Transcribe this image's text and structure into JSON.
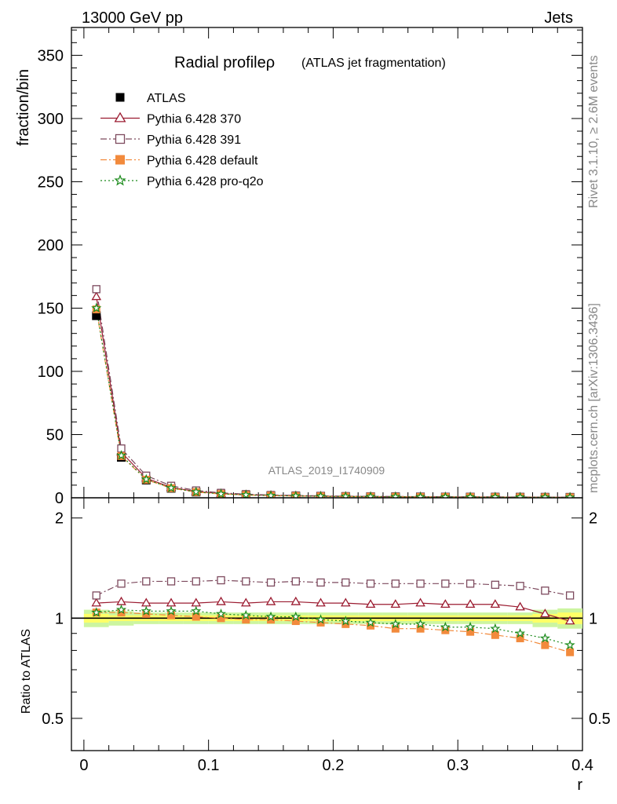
{
  "header": {
    "left": "13000 GeV pp",
    "right": "Jets"
  },
  "side": {
    "rivet": "Rivet 3.1.10, ≥ 2.6M events",
    "mcplots": "mcplots.cern.ch [arXiv:1306.3436]"
  },
  "chart_data": [
    {
      "type": "line",
      "title": "Radial profileρ",
      "subtitle": "(ATLAS jet fragmentation)",
      "ylabel": "fraction/bin",
      "analysis_label": "ATLAS_2019_I1740909",
      "ylim": [
        0,
        372
      ],
      "yticks": [
        0,
        50,
        100,
        150,
        200,
        250,
        300,
        350
      ],
      "legend_position": "top-left",
      "x": [
        0.01,
        0.03,
        0.05,
        0.07,
        0.09,
        0.11,
        0.13,
        0.15,
        0.17,
        0.19,
        0.21,
        0.23,
        0.25,
        0.27,
        0.29,
        0.31,
        0.33,
        0.35,
        0.37,
        0.39
      ],
      "series": [
        {
          "name": "ATLAS",
          "color": "#000000",
          "marker": "square-filled",
          "line": "none",
          "values": [
            144,
            32,
            14,
            7.5,
            4.5,
            3.0,
            2.2,
            1.7,
            1.4,
            1.2,
            1.0,
            0.9,
            0.8,
            0.7,
            0.65,
            0.6,
            0.55,
            0.5,
            0.45,
            0.4
          ]
        },
        {
          "name": "Pythia 6.428 370",
          "color": "#9b1b30",
          "marker": "triangle-open",
          "line": "solid",
          "values": [
            159,
            36,
            15.5,
            8.2,
            5.0,
            3.3,
            2.4,
            1.9,
            1.55,
            1.3,
            1.1,
            0.97,
            0.87,
            0.78,
            0.71,
            0.66,
            0.6,
            0.53,
            0.47,
            0.39
          ]
        },
        {
          "name": "Pythia 6.428 391",
          "color": "#7d4a5e",
          "marker": "square-open",
          "line": "dashdot",
          "values": [
            165,
            39,
            17.5,
            9.5,
            5.8,
            3.9,
            2.9,
            2.2,
            1.85,
            1.55,
            1.3,
            1.15,
            1.04,
            0.91,
            0.85,
            0.78,
            0.71,
            0.64,
            0.55,
            0.46
          ]
        },
        {
          "name": "Pythia 6.428 default",
          "color": "#f28a3c",
          "marker": "square-filled",
          "line": "dashdot",
          "values": [
            149,
            33,
            14.3,
            7.6,
            4.5,
            3.0,
            2.2,
            1.68,
            1.37,
            1.16,
            0.96,
            0.85,
            0.74,
            0.65,
            0.6,
            0.54,
            0.49,
            0.43,
            0.37,
            0.31
          ]
        },
        {
          "name": "Pythia 6.428 pro-q2o",
          "color": "#1a8a1a",
          "marker": "star-open",
          "line": "dotted",
          "values": [
            150,
            33.5,
            14.6,
            7.8,
            4.7,
            3.1,
            2.3,
            1.73,
            1.41,
            1.19,
            0.99,
            0.87,
            0.77,
            0.68,
            0.62,
            0.57,
            0.51,
            0.45,
            0.39,
            0.33
          ]
        }
      ]
    },
    {
      "type": "line",
      "ylabel": "Ratio to ATLAS",
      "xlabel": "r",
      "xlim": [
        -0.01,
        0.4
      ],
      "xticks": [
        0,
        0.1,
        0.2,
        0.3,
        0.4
      ],
      "ylim": [
        0.4,
        2.3
      ],
      "yscale": "log",
      "yticks": [
        0.5,
        1,
        2
      ],
      "ytick_labels": [
        "0.5",
        "1",
        "2"
      ],
      "reference_line": 1,
      "uncertainty_band": {
        "x": [
          0.01,
          0.03,
          0.05,
          0.07,
          0.09,
          0.11,
          0.13,
          0.15,
          0.17,
          0.19,
          0.21,
          0.23,
          0.25,
          0.27,
          0.29,
          0.31,
          0.33,
          0.35,
          0.37,
          0.39
        ],
        "inner": [
          0.03,
          0.02,
          0.02,
          0.02,
          0.02,
          0.02,
          0.02,
          0.02,
          0.02,
          0.02,
          0.02,
          0.02,
          0.02,
          0.02,
          0.02,
          0.02,
          0.02,
          0.02,
          0.03,
          0.04
        ],
        "outer": [
          0.06,
          0.05,
          0.04,
          0.04,
          0.04,
          0.04,
          0.04,
          0.04,
          0.04,
          0.04,
          0.04,
          0.04,
          0.04,
          0.04,
          0.04,
          0.04,
          0.04,
          0.04,
          0.06,
          0.07
        ],
        "inner_color": "#ffff66",
        "outer_color": "#ccf5a0"
      },
      "x": [
        0.01,
        0.03,
        0.05,
        0.07,
        0.09,
        0.11,
        0.13,
        0.15,
        0.17,
        0.19,
        0.21,
        0.23,
        0.25,
        0.27,
        0.29,
        0.31,
        0.33,
        0.35,
        0.37,
        0.39
      ],
      "series": [
        {
          "name": "Pythia 6.428 370",
          "color": "#9b1b30",
          "marker": "triangle-open",
          "line": "solid",
          "values": [
            1.11,
            1.12,
            1.11,
            1.11,
            1.11,
            1.12,
            1.11,
            1.12,
            1.12,
            1.11,
            1.11,
            1.1,
            1.1,
            1.11,
            1.1,
            1.1,
            1.1,
            1.08,
            1.03,
            0.98
          ]
        },
        {
          "name": "Pythia 6.428 391",
          "color": "#7d4a5e",
          "marker": "square-open",
          "line": "dashdot",
          "values": [
            1.17,
            1.27,
            1.29,
            1.29,
            1.29,
            1.3,
            1.29,
            1.28,
            1.29,
            1.28,
            1.28,
            1.27,
            1.27,
            1.27,
            1.27,
            1.27,
            1.26,
            1.25,
            1.21,
            1.17
          ]
        },
        {
          "name": "Pythia 6.428 default",
          "color": "#f28a3c",
          "marker": "square-filled",
          "line": "dashdot",
          "values": [
            1.04,
            1.04,
            1.03,
            1.02,
            1.01,
            1.0,
            0.99,
            0.99,
            0.98,
            0.97,
            0.96,
            0.95,
            0.93,
            0.93,
            0.92,
            0.91,
            0.89,
            0.87,
            0.83,
            0.79
          ]
        },
        {
          "name": "Pythia 6.428 pro-q2o",
          "color": "#1a8a1a",
          "marker": "star-open",
          "line": "dotted",
          "values": [
            1.04,
            1.06,
            1.05,
            1.05,
            1.05,
            1.03,
            1.02,
            1.01,
            1.01,
            0.99,
            0.98,
            0.97,
            0.96,
            0.96,
            0.94,
            0.94,
            0.93,
            0.9,
            0.87,
            0.83
          ]
        }
      ]
    }
  ]
}
